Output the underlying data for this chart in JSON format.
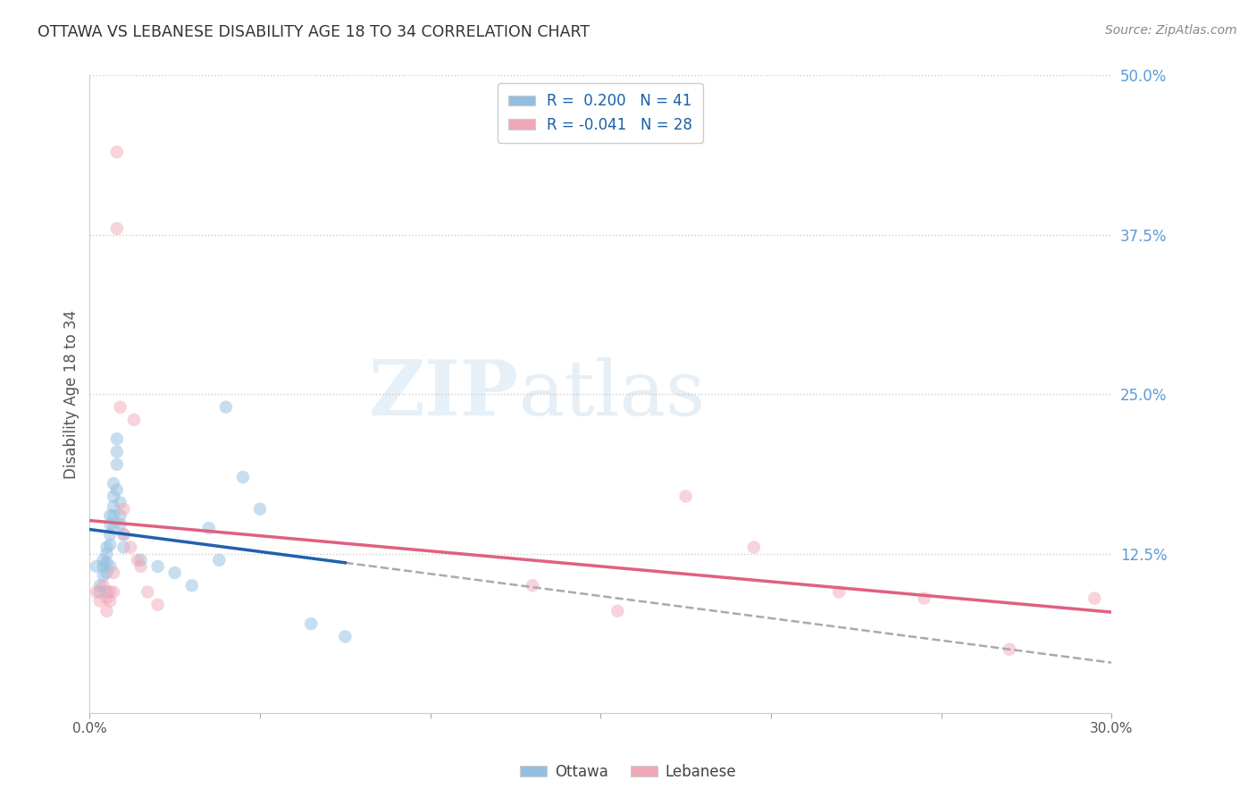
{
  "title": "OTTAWA VS LEBANESE DISABILITY AGE 18 TO 34 CORRELATION CHART",
  "source": "Source: ZipAtlas.com",
  "ylabel": "Disability Age 18 to 34",
  "xlim": [
    0.0,
    0.3
  ],
  "ylim": [
    0.0,
    0.5
  ],
  "xticks": [
    0.0,
    0.05,
    0.1,
    0.15,
    0.2,
    0.25,
    0.3
  ],
  "xticklabels": [
    "0.0%",
    "",
    "",
    "",
    "",
    "",
    "30.0%"
  ],
  "yticks_right": [
    0.0,
    0.125,
    0.25,
    0.375,
    0.5
  ],
  "ytick_right_labels": [
    "",
    "12.5%",
    "25.0%",
    "37.5%",
    "50.0%"
  ],
  "legend_label1": "R =  0.200   N = 41",
  "legend_label2": "R = -0.041   N = 28",
  "ottawa_color": "#92bfe0",
  "lebanese_color": "#f0a8b8",
  "trendline_ottawa_color": "#2060b0",
  "trendline_lebanese_color": "#e06080",
  "background_color": "#ffffff",
  "grid_color": "#cccccc",
  "watermark_zip": "ZIP",
  "watermark_atlas": "atlas",
  "ottawa_x": [
    0.002,
    0.003,
    0.003,
    0.004,
    0.004,
    0.004,
    0.005,
    0.005,
    0.005,
    0.005,
    0.005,
    0.006,
    0.006,
    0.006,
    0.006,
    0.006,
    0.007,
    0.007,
    0.007,
    0.007,
    0.007,
    0.008,
    0.008,
    0.008,
    0.008,
    0.009,
    0.009,
    0.009,
    0.01,
    0.01,
    0.015,
    0.02,
    0.025,
    0.03,
    0.035,
    0.038,
    0.04,
    0.045,
    0.05,
    0.065,
    0.075
  ],
  "ottawa_y": [
    0.115,
    0.1,
    0.095,
    0.12,
    0.115,
    0.108,
    0.13,
    0.125,
    0.118,
    0.11,
    0.095,
    0.155,
    0.148,
    0.14,
    0.132,
    0.115,
    0.18,
    0.17,
    0.162,
    0.155,
    0.145,
    0.215,
    0.205,
    0.195,
    0.175,
    0.165,
    0.155,
    0.148,
    0.14,
    0.13,
    0.12,
    0.115,
    0.11,
    0.1,
    0.145,
    0.12,
    0.24,
    0.185,
    0.16,
    0.07,
    0.06
  ],
  "lebanese_x": [
    0.002,
    0.003,
    0.004,
    0.005,
    0.005,
    0.006,
    0.006,
    0.007,
    0.007,
    0.008,
    0.008,
    0.009,
    0.01,
    0.01,
    0.012,
    0.013,
    0.014,
    0.015,
    0.017,
    0.02,
    0.13,
    0.155,
    0.175,
    0.195,
    0.22,
    0.245,
    0.27,
    0.295
  ],
  "lebanese_y": [
    0.095,
    0.088,
    0.1,
    0.09,
    0.08,
    0.095,
    0.088,
    0.11,
    0.095,
    0.44,
    0.38,
    0.24,
    0.16,
    0.14,
    0.13,
    0.23,
    0.12,
    0.115,
    0.095,
    0.085,
    0.1,
    0.08,
    0.17,
    0.13,
    0.095,
    0.09,
    0.05,
    0.09
  ],
  "marker_size": 110,
  "alpha": 0.5
}
